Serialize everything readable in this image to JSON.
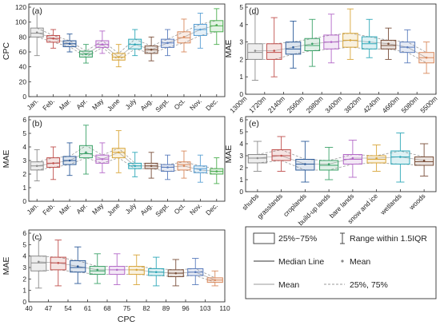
{
  "chart_data": [
    {
      "panel": "(a)",
      "type": "box",
      "ylabel": "CPC",
      "xlabel": "",
      "ylim": [
        0,
        120
      ],
      "yticks": [
        0,
        20,
        40,
        60,
        80,
        100,
        120
      ],
      "categories": [
        "Jan.",
        "Feb.",
        "Mar.",
        "Apr.",
        "May",
        "June",
        "July",
        "Aug.",
        "Sept.",
        "Oct.",
        "Nov.",
        "Dec."
      ],
      "colors": [
        "#8c8c8c",
        "#c0504d",
        "#2e5c9a",
        "#3da36a",
        "#b469c8",
        "#d9a63a",
        "#2ea8b8",
        "#7a4f3a",
        "#5b7dbd",
        "#d98a5e",
        "#5aa0d4",
        "#4caf50"
      ],
      "boxes": [
        {
          "min": 55,
          "q1": 80,
          "median": 85,
          "mean": 86,
          "q3": 92,
          "max": 112
        },
        {
          "min": 65,
          "q1": 73,
          "median": 78,
          "mean": 78,
          "q3": 82,
          "max": 90
        },
        {
          "min": 60,
          "q1": 67,
          "median": 71,
          "mean": 71,
          "q3": 75,
          "max": 84
        },
        {
          "min": 45,
          "q1": 53,
          "median": 57,
          "mean": 57,
          "q3": 61,
          "max": 70
        },
        {
          "min": 58,
          "q1": 66,
          "median": 70,
          "mean": 70,
          "q3": 75,
          "max": 88
        },
        {
          "min": 40,
          "q1": 49,
          "median": 53,
          "mean": 53,
          "q3": 58,
          "max": 70
        },
        {
          "min": 55,
          "q1": 64,
          "median": 70,
          "mean": 70,
          "q3": 77,
          "max": 90
        },
        {
          "min": 48,
          "q1": 58,
          "median": 63,
          "mean": 63,
          "q3": 68,
          "max": 80
        },
        {
          "min": 55,
          "q1": 66,
          "median": 72,
          "mean": 72,
          "q3": 77,
          "max": 90
        },
        {
          "min": 60,
          "q1": 72,
          "median": 79,
          "mean": 80,
          "q3": 87,
          "max": 104
        },
        {
          "min": 65,
          "q1": 82,
          "median": 90,
          "mean": 90,
          "q3": 97,
          "max": 112
        },
        {
          "min": 70,
          "q1": 87,
          "median": 95,
          "mean": 96,
          "q3": 102,
          "max": 118
        }
      ]
    },
    {
      "panel": "(b)",
      "type": "box",
      "ylabel": "MAE",
      "xlabel": "",
      "ylim": [
        0,
        6
      ],
      "yticks": [
        0,
        1,
        2,
        3,
        4,
        5,
        6
      ],
      "categories": [
        "Jan.",
        "Feb.",
        "Mar.",
        "Apr.",
        "May",
        "June",
        "July",
        "Aug.",
        "Sept.",
        "Oct.",
        "Nov.",
        "Dec."
      ],
      "colors": [
        "#8c8c8c",
        "#c0504d",
        "#2e5c9a",
        "#3da36a",
        "#b469c8",
        "#d9a63a",
        "#2ea8b8",
        "#7a4f3a",
        "#5b7dbd",
        "#d98a5e",
        "#5aa0d4",
        "#4caf50"
      ],
      "boxes": [
        {
          "min": 1.5,
          "q1": 2.3,
          "median": 2.6,
          "mean": 2.6,
          "q3": 2.9,
          "max": 3.8
        },
        {
          "min": 1.6,
          "q1": 2.5,
          "median": 2.8,
          "mean": 2.8,
          "q3": 3.2,
          "max": 4.0
        },
        {
          "min": 1.9,
          "q1": 2.7,
          "median": 3.0,
          "mean": 3.0,
          "q3": 3.3,
          "max": 4.3
        },
        {
          "min": 2.0,
          "q1": 3.2,
          "median": 3.5,
          "mean": 3.6,
          "q3": 4.1,
          "max": 5.6
        },
        {
          "min": 2.1,
          "q1": 2.8,
          "median": 3.1,
          "mean": 3.1,
          "q3": 3.4,
          "max": 4.3
        },
        {
          "min": 2.1,
          "q1": 3.2,
          "median": 3.6,
          "mean": 3.6,
          "q3": 3.9,
          "max": 5.2
        },
        {
          "min": 1.8,
          "q1": 2.4,
          "median": 2.6,
          "mean": 2.6,
          "q3": 2.8,
          "max": 3.6
        },
        {
          "min": 1.7,
          "q1": 2.4,
          "median": 2.6,
          "mean": 2.6,
          "q3": 2.8,
          "max": 3.6
        },
        {
          "min": 1.6,
          "q1": 2.2,
          "median": 2.5,
          "mean": 2.5,
          "q3": 2.7,
          "max": 3.4
        },
        {
          "min": 1.7,
          "q1": 2.3,
          "median": 2.7,
          "mean": 2.6,
          "q3": 2.9,
          "max": 3.7
        },
        {
          "min": 1.4,
          "q1": 2.1,
          "median": 2.4,
          "mean": 2.3,
          "q3": 2.6,
          "max": 3.4
        },
        {
          "min": 1.3,
          "q1": 2.0,
          "median": 2.2,
          "mean": 2.2,
          "q3": 2.4,
          "max": 3.2
        }
      ]
    },
    {
      "panel": "(c)",
      "type": "box",
      "ylabel": "MAE",
      "xlabel": "CPC",
      "ylim": [
        0,
        6
      ],
      "yticks": [
        0,
        1,
        2,
        3,
        4,
        5,
        6
      ],
      "xticks": [
        "40",
        "47",
        "54",
        "61",
        "68",
        "75",
        "82",
        "89",
        "96",
        "103",
        "110"
      ],
      "colors": [
        "#8c8c8c",
        "#c0504d",
        "#2e5c9a",
        "#3da36a",
        "#b469c8",
        "#d9a63a",
        "#2ea8b8",
        "#7a4f3a",
        "#5b7dbd",
        "#d98a5e"
      ],
      "boxes": [
        {
          "min": 1.2,
          "q1": 2.7,
          "median": 3.4,
          "mean": 3.5,
          "q3": 4.0,
          "max": 5.5
        },
        {
          "min": 1.4,
          "q1": 2.8,
          "median": 3.4,
          "mean": 3.4,
          "q3": 3.9,
          "max": 5.4
        },
        {
          "min": 1.6,
          "q1": 2.6,
          "median": 3.0,
          "mean": 3.1,
          "q3": 3.6,
          "max": 4.8
        },
        {
          "min": 1.6,
          "q1": 2.4,
          "median": 2.7,
          "mean": 2.8,
          "q3": 3.1,
          "max": 4.2
        },
        {
          "min": 1.5,
          "q1": 2.4,
          "median": 2.8,
          "mean": 2.8,
          "q3": 3.1,
          "max": 4.2
        },
        {
          "min": 1.5,
          "q1": 2.4,
          "median": 2.8,
          "mean": 2.8,
          "q3": 3.1,
          "max": 4.1
        },
        {
          "min": 1.4,
          "q1": 2.3,
          "median": 2.6,
          "mean": 2.6,
          "q3": 2.9,
          "max": 3.9
        },
        {
          "min": 1.4,
          "q1": 2.2,
          "median": 2.5,
          "mean": 2.5,
          "q3": 2.8,
          "max": 3.7
        },
        {
          "min": 1.5,
          "q1": 2.3,
          "median": 2.6,
          "mean": 2.6,
          "q3": 2.9,
          "max": 3.8
        },
        {
          "min": 1.4,
          "q1": 1.7,
          "median": 1.9,
          "mean": 1.9,
          "q3": 2.1,
          "max": 2.7
        }
      ]
    },
    {
      "panel": "(d)",
      "type": "box",
      "ylabel": "MAE",
      "xlabel": "",
      "ylim": [
        0,
        5
      ],
      "yticks": [
        0,
        1,
        2,
        3,
        4,
        5
      ],
      "categories": [
        "1300m",
        "1720m",
        "2140m",
        "2560m",
        "2980m",
        "3400m",
        "3820m",
        "4240m",
        "4660m",
        "5080m",
        "5500m"
      ],
      "colors": [
        "#8c8c8c",
        "#c0504d",
        "#2e5c9a",
        "#3da36a",
        "#b469c8",
        "#d9a63a",
        "#2ea8b8",
        "#7a4f3a",
        "#5b7dbd",
        "#d98a5e"
      ],
      "boxes": [
        {
          "min": 0.8,
          "q1": 2.0,
          "median": 2.4,
          "mean": 2.5,
          "q3": 2.9,
          "max": 4.6
        },
        {
          "min": 1.0,
          "q1": 2.0,
          "median": 2.4,
          "mean": 2.5,
          "q3": 2.9,
          "max": 4.4
        },
        {
          "min": 1.5,
          "q1": 2.3,
          "median": 2.6,
          "mean": 2.7,
          "q3": 3.0,
          "max": 4.2
        },
        {
          "min": 1.6,
          "q1": 2.5,
          "median": 2.8,
          "mean": 2.9,
          "q3": 3.2,
          "max": 4.3
        },
        {
          "min": 1.8,
          "q1": 2.6,
          "median": 3.0,
          "mean": 3.0,
          "q3": 3.4,
          "max": 4.6
        },
        {
          "min": 2.0,
          "q1": 2.7,
          "median": 3.1,
          "mean": 3.1,
          "q3": 3.5,
          "max": 4.9
        },
        {
          "min": 2.1,
          "q1": 2.6,
          "median": 2.9,
          "mean": 3.0,
          "q3": 3.3,
          "max": 4.3
        },
        {
          "min": 2.0,
          "q1": 2.6,
          "median": 2.8,
          "mean": 2.9,
          "q3": 3.1,
          "max": 3.8
        },
        {
          "min": 1.8,
          "q1": 2.4,
          "median": 2.7,
          "mean": 2.7,
          "q3": 3.0,
          "max": 3.7
        },
        {
          "min": 1.2,
          "q1": 1.8,
          "median": 2.1,
          "mean": 2.1,
          "q3": 2.4,
          "max": 3.0
        }
      ]
    },
    {
      "panel": "(e)",
      "type": "box",
      "ylabel": "MAE",
      "xlabel": "",
      "ylim": [
        0,
        6
      ],
      "yticks": [
        0,
        1,
        2,
        3,
        4,
        5,
        6
      ],
      "categories": [
        "shurbs",
        "grasslands",
        "croplands",
        "build-up lands",
        "bare lands",
        "snow and ice",
        "wetlands",
        "woods"
      ],
      "colors": [
        "#8c8c8c",
        "#c0504d",
        "#2e5c9a",
        "#3da36a",
        "#b469c8",
        "#d9a63a",
        "#2ea8b8",
        "#7a4f3a"
      ],
      "boxes": [
        {
          "min": 1.7,
          "q1": 2.4,
          "median": 2.8,
          "mean": 2.8,
          "q3": 3.1,
          "max": 4.2
        },
        {
          "min": 1.7,
          "q1": 2.6,
          "median": 3.0,
          "mean": 3.0,
          "q3": 3.5,
          "max": 4.6
        },
        {
          "min": 0.8,
          "q1": 1.8,
          "median": 2.3,
          "mean": 2.3,
          "q3": 2.7,
          "max": 4.2
        },
        {
          "min": 1.0,
          "q1": 1.8,
          "median": 2.2,
          "mean": 2.3,
          "q3": 2.6,
          "max": 3.7
        },
        {
          "min": 1.2,
          "q1": 2.3,
          "median": 2.7,
          "mean": 2.8,
          "q3": 3.1,
          "max": 4.3
        },
        {
          "min": 1.7,
          "q1": 2.4,
          "median": 2.7,
          "mean": 2.8,
          "q3": 3.0,
          "max": 3.9
        },
        {
          "min": 0.8,
          "q1": 2.3,
          "median": 2.9,
          "mean": 2.9,
          "q3": 3.4,
          "max": 4.9
        },
        {
          "min": 1.3,
          "q1": 2.2,
          "median": 2.5,
          "mean": 2.6,
          "q3": 2.9,
          "max": 4.0
        }
      ]
    }
  ],
  "legend": {
    "box_label": "25%~75%",
    "range_label": "Range within 1.5IQR",
    "median_label": "Median Line",
    "mean_point_label": "Mean",
    "mean_line_label": "Mean",
    "quartile_label": "25%, 75%"
  }
}
